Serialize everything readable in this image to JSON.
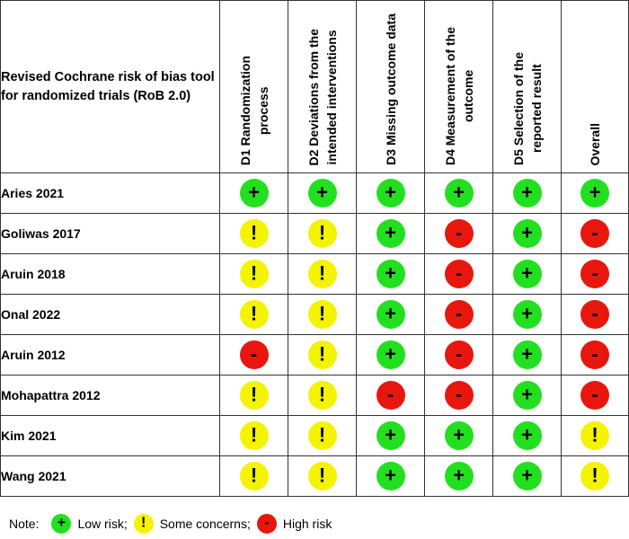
{
  "title": "Revised Cochrane risk of bias tool for randomized trials (RoB 2.0)",
  "domains": [
    {
      "code": "D1",
      "label_line1": "D1 Randomization",
      "label_line2": "process"
    },
    {
      "code": "D2",
      "label_line1": "D2 Deviations from the",
      "label_line2": "intended interventions"
    },
    {
      "code": "D3",
      "label_line1": "D3 Missing outcome data",
      "label_line2": ""
    },
    {
      "code": "D4",
      "label_line1": "D4 Measurement of the",
      "label_line2": "outcome"
    },
    {
      "code": "D5",
      "label_line1": "D5 Selection of the",
      "label_line2": "reported result"
    },
    {
      "code": "Overall",
      "label_line1": "Overall",
      "label_line2": ""
    }
  ],
  "studies": [
    {
      "name": "Aries 2021",
      "judgements": [
        "low",
        "low",
        "low",
        "low",
        "low",
        "low"
      ]
    },
    {
      "name": "Goliwas 2017",
      "judgements": [
        "some",
        "some",
        "low",
        "high",
        "low",
        "high"
      ]
    },
    {
      "name": "Aruin 2018",
      "judgements": [
        "some",
        "some",
        "low",
        "high",
        "low",
        "high"
      ]
    },
    {
      "name": "Onal 2022",
      "judgements": [
        "some",
        "some",
        "low",
        "high",
        "low",
        "high"
      ]
    },
    {
      "name": "Aruin 2012",
      "judgements": [
        "high",
        "some",
        "low",
        "high",
        "low",
        "high"
      ]
    },
    {
      "name": "Mohapattra 2012",
      "judgements": [
        "some",
        "some",
        "high",
        "high",
        "low",
        "high"
      ]
    },
    {
      "name": "Kim 2021",
      "judgements": [
        "some",
        "some",
        "low",
        "low",
        "low",
        "some"
      ]
    },
    {
      "name": "Wang 2021",
      "judgements": [
        "some",
        "some",
        "low",
        "low",
        "low",
        "some"
      ]
    }
  ],
  "symbols": {
    "low": "+",
    "some": "!",
    "high": "-"
  },
  "colors": {
    "low": "#22e01f",
    "some": "#f4f300",
    "high": "#e8170e",
    "border": "#333333"
  },
  "note": {
    "prefix": "Note:",
    "low_label": "Low risk;",
    "some_label": "Some concerns;",
    "high_label": "High risk"
  }
}
